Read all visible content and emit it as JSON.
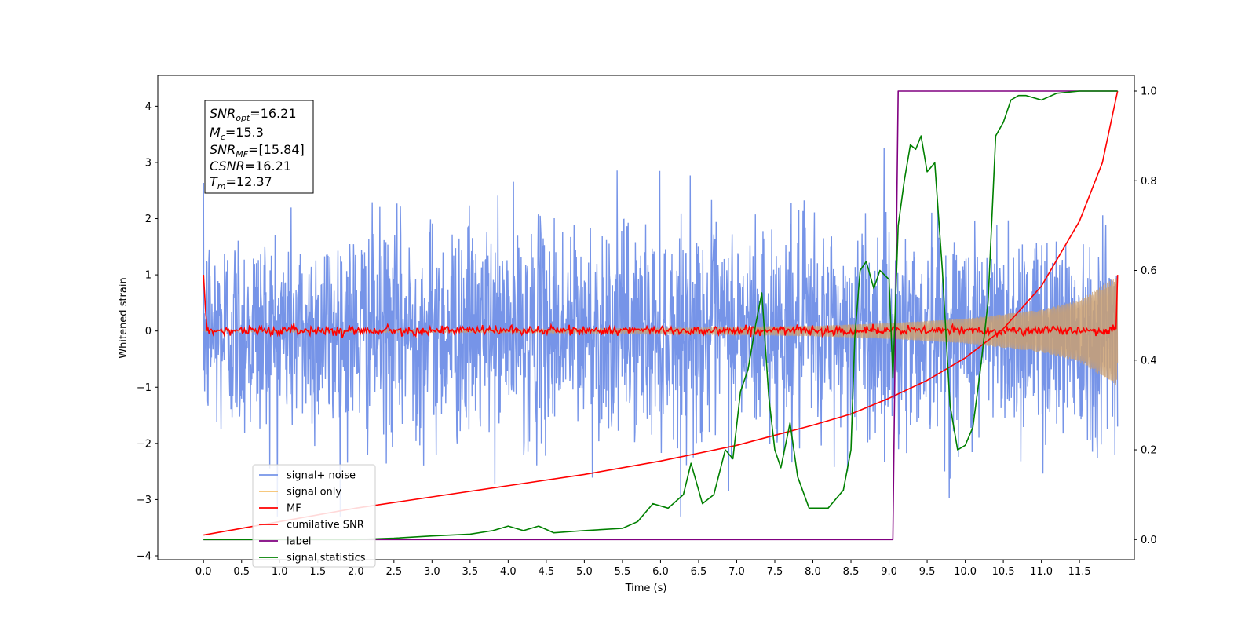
{
  "chart_data": {
    "type": "line",
    "xlabel": "Time (s)",
    "ylabel": "Whitened strain",
    "xlim": [
      -0.6,
      12.22
    ],
    "ylim": [
      -4.07,
      4.55
    ],
    "y2lim": [
      -0.045,
      1.035
    ],
    "x_ticks": [
      "0.0",
      "0.5",
      "1.0",
      "1.5",
      "2.0",
      "2.5",
      "3.0",
      "3.5",
      "4.0",
      "4.5",
      "5.0",
      "5.5",
      "6.0",
      "6.5",
      "7.0",
      "7.5",
      "8.0",
      "8.5",
      "9.0",
      "9.5",
      "10.0",
      "10.5",
      "11.0",
      "11.5"
    ],
    "y_ticks": [
      "−4",
      "−3",
      "−2",
      "−1",
      "0",
      "1",
      "2",
      "3",
      "4"
    ],
    "y2_ticks": [
      "0.0",
      "0.2",
      "0.4",
      "0.6",
      "0.8",
      "1.0"
    ],
    "legend": {
      "location": "lower-left",
      "entries": [
        "signal+ noise",
        "signal only",
        "MF",
        "cumilative SNR",
        "label",
        "signal statistics"
      ]
    },
    "annotation": {
      "snr_opt": {
        "base": "SNR",
        "sub": "opt",
        "value": "=16.21"
      },
      "mc": {
        "base": "M",
        "sub": "c",
        "value": "=15.3"
      },
      "snr_mf": {
        "base": "SNR",
        "sub": "MF",
        "value": "=[15.84]"
      },
      "csnr": {
        "base": "CSNR",
        "sub": "",
        "value": "=16.21"
      },
      "tm": {
        "base": "T",
        "sub": "m",
        "value": "=12.37"
      }
    },
    "series": [
      {
        "name": "signal+ noise",
        "axis": "left",
        "color": "#7694e8",
        "description_x_range": [
          0,
          12
        ],
        "approx_amplitude": 2.2
      },
      {
        "name": "signal only",
        "axis": "left",
        "color": "#f5c06b",
        "envelope": {
          "x": [
            0,
            4,
            6,
            8,
            9,
            10,
            11,
            11.5,
            12
          ],
          "amp": [
            0.02,
            0.03,
            0.05,
            0.09,
            0.14,
            0.22,
            0.38,
            0.55,
            0.98
          ]
        }
      },
      {
        "name": "MF",
        "axis": "left",
        "color": "#ff0000",
        "points": [
          [
            0,
            1.0
          ],
          [
            0.03,
            0.3
          ],
          [
            0.05,
            0.0
          ],
          [
            0.3,
            0.05
          ],
          [
            6,
            0.0
          ],
          [
            11.98,
            0.05
          ],
          [
            12,
            1.0
          ]
        ]
      },
      {
        "name": "cumilative SNR",
        "axis": "right",
        "color": "#ff0000",
        "points": [
          [
            0,
            0.01
          ],
          [
            1,
            0.04
          ],
          [
            2,
            0.07
          ],
          [
            3,
            0.095
          ],
          [
            4,
            0.12
          ],
          [
            5,
            0.145
          ],
          [
            6,
            0.175
          ],
          [
            7,
            0.21
          ],
          [
            8,
            0.255
          ],
          [
            8.5,
            0.28
          ],
          [
            9,
            0.315
          ],
          [
            9.5,
            0.355
          ],
          [
            10,
            0.405
          ],
          [
            10.5,
            0.47
          ],
          [
            11,
            0.565
          ],
          [
            11.5,
            0.71
          ],
          [
            11.8,
            0.84
          ],
          [
            12,
            1.0
          ]
        ]
      },
      {
        "name": "label",
        "axis": "right",
        "color": "#800080",
        "points": [
          [
            0,
            0.0
          ],
          [
            9.05,
            0.0
          ],
          [
            9.12,
            1.0
          ],
          [
            12,
            1.0
          ]
        ]
      },
      {
        "name": "signal statistics",
        "axis": "right",
        "color": "#008000",
        "points": [
          [
            0,
            0.0
          ],
          [
            1,
            0.0
          ],
          [
            2,
            0.0
          ],
          [
            2.5,
            0.003
          ],
          [
            3,
            0.008
          ],
          [
            3.5,
            0.012
          ],
          [
            3.8,
            0.02
          ],
          [
            4.0,
            0.03
          ],
          [
            4.2,
            0.02
          ],
          [
            4.4,
            0.03
          ],
          [
            4.6,
            0.015
          ],
          [
            5.0,
            0.02
          ],
          [
            5.5,
            0.025
          ],
          [
            5.7,
            0.04
          ],
          [
            5.9,
            0.08
          ],
          [
            6.1,
            0.07
          ],
          [
            6.3,
            0.1
          ],
          [
            6.4,
            0.17
          ],
          [
            6.55,
            0.08
          ],
          [
            6.7,
            0.1
          ],
          [
            6.85,
            0.2
          ],
          [
            6.95,
            0.18
          ],
          [
            7.05,
            0.33
          ],
          [
            7.15,
            0.38
          ],
          [
            7.25,
            0.48
          ],
          [
            7.33,
            0.55
          ],
          [
            7.42,
            0.32
          ],
          [
            7.5,
            0.2
          ],
          [
            7.58,
            0.16
          ],
          [
            7.7,
            0.26
          ],
          [
            7.8,
            0.14
          ],
          [
            7.95,
            0.07
          ],
          [
            8.2,
            0.07
          ],
          [
            8.4,
            0.11
          ],
          [
            8.5,
            0.2
          ],
          [
            8.55,
            0.45
          ],
          [
            8.62,
            0.6
          ],
          [
            8.7,
            0.62
          ],
          [
            8.8,
            0.56
          ],
          [
            8.88,
            0.6
          ],
          [
            9.0,
            0.58
          ],
          [
            9.05,
            0.36
          ],
          [
            9.12,
            0.7
          ],
          [
            9.2,
            0.8
          ],
          [
            9.28,
            0.88
          ],
          [
            9.35,
            0.87
          ],
          [
            9.42,
            0.9
          ],
          [
            9.5,
            0.82
          ],
          [
            9.6,
            0.84
          ],
          [
            9.7,
            0.6
          ],
          [
            9.8,
            0.3
          ],
          [
            9.9,
            0.2
          ],
          [
            10.0,
            0.21
          ],
          [
            10.1,
            0.25
          ],
          [
            10.2,
            0.38
          ],
          [
            10.3,
            0.53
          ],
          [
            10.4,
            0.9
          ],
          [
            10.5,
            0.93
          ],
          [
            10.6,
            0.98
          ],
          [
            10.7,
            0.99
          ],
          [
            10.8,
            0.99
          ],
          [
            11.0,
            0.98
          ],
          [
            11.2,
            0.995
          ],
          [
            11.5,
            1.0
          ],
          [
            12,
            1.0
          ]
        ]
      }
    ]
  }
}
